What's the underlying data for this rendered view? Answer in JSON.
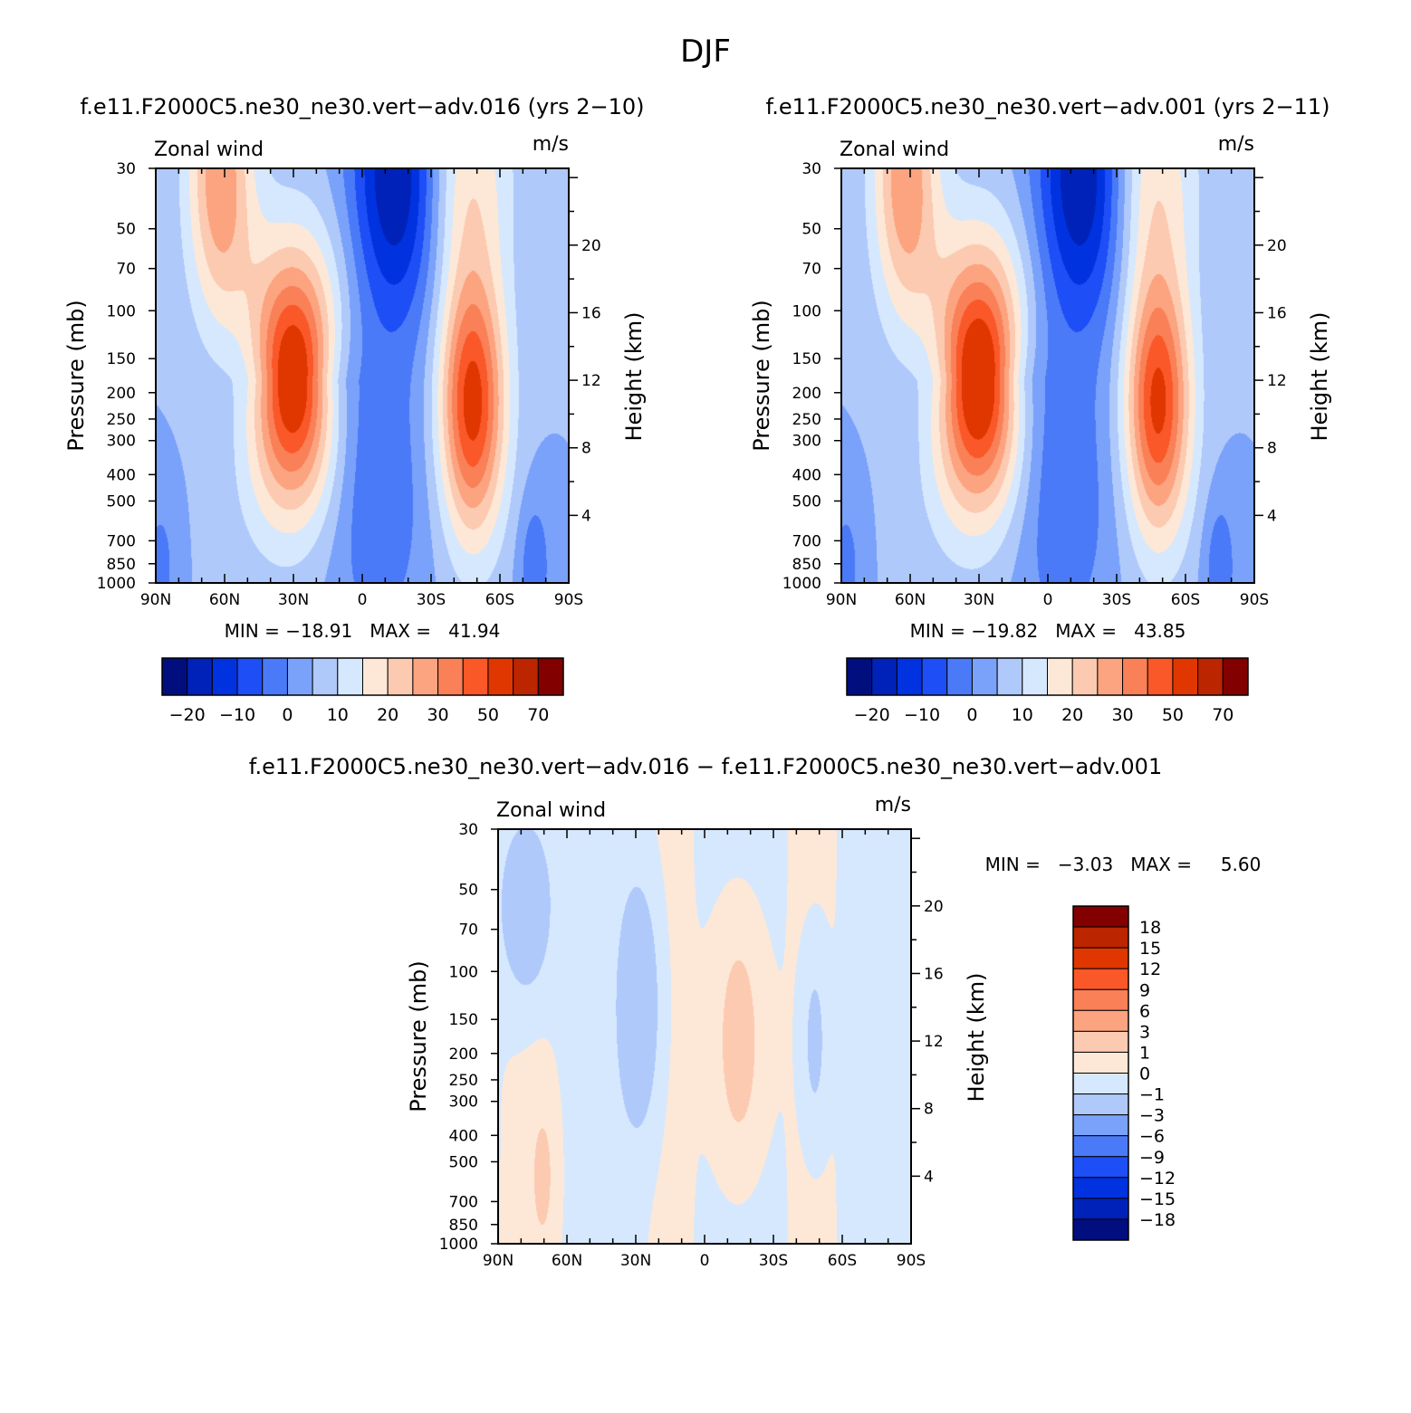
{
  "figure": {
    "season_title": "DJF",
    "colors": {
      "main_palette": [
        "#000e7e",
        "#0022b8",
        "#0032df",
        "#1d4ef6",
        "#4a7af8",
        "#7aa2fa",
        "#b0c9fb",
        "#d6e8fd",
        "#fde8d8",
        "#fccab0",
        "#fca380",
        "#f98057",
        "#fa5828",
        "#e03700",
        "#bb2500",
        "#830000"
      ],
      "diff_palette": [
        "#000e7e",
        "#0022b8",
        "#0032df",
        "#1d4ef6",
        "#4a7af8",
        "#7aa2fa",
        "#b0c9fb",
        "#d6e8fd",
        "#fde8d8",
        "#fccab0",
        "#fca380",
        "#f98057",
        "#fa5828",
        "#e03700",
        "#bb2500",
        "#830000"
      ]
    }
  },
  "chart_data": [
    {
      "type": "heatmap",
      "title": "f.e11.F2000C5.ne30_ne30.vert−adv.016 (yrs 2−10)",
      "variable_label": "Zonal wind",
      "units_label": "m/s",
      "ylabel": "Pressure (mb)",
      "ylabel_right": "Height (km)",
      "x_ticks": [
        "90N",
        "60N",
        "30N",
        "0",
        "30S",
        "60S",
        "90S"
      ],
      "y_ticks": [
        "30",
        "50",
        "70",
        "100",
        "150",
        "200",
        "250",
        "300",
        "400",
        "500",
        "700",
        "850",
        "1000"
      ],
      "y_ticks_right": [
        "20",
        "16",
        "12",
        "8",
        "4"
      ],
      "xlim": [
        90,
        -90
      ],
      "ylim_mb": [
        1000,
        30
      ],
      "min_max_text": "MIN = −18.91   MAX =   41.94",
      "min": -18.91,
      "max": 41.94,
      "colorbar_labels": [
        "−20",
        "−10",
        "0",
        "10",
        "20",
        "30",
        "50",
        "70"
      ],
      "jets": [
        {
          "lat": 30,
          "p": 180,
          "peak": 41.94
        },
        {
          "lat": -48,
          "p": 220,
          "peak": 38
        }
      ],
      "easterly_min": {
        "lat": -15,
        "p": 30,
        "value": -18.91
      }
    },
    {
      "type": "heatmap",
      "title": "f.e11.F2000C5.ne30_ne30.vert−adv.001 (yrs 2−11)",
      "variable_label": "Zonal wind",
      "units_label": "m/s",
      "ylabel": "Pressure (mb)",
      "ylabel_right": "Height (km)",
      "x_ticks": [
        "90N",
        "60N",
        "30N",
        "0",
        "30S",
        "60S",
        "90S"
      ],
      "y_ticks": [
        "30",
        "50",
        "70",
        "100",
        "150",
        "200",
        "250",
        "300",
        "400",
        "500",
        "700",
        "850",
        "1000"
      ],
      "y_ticks_right": [
        "20",
        "16",
        "12",
        "8",
        "4"
      ],
      "xlim": [
        90,
        -90
      ],
      "ylim_mb": [
        1000,
        30
      ],
      "min_max_text": "MIN = −19.82   MAX =   43.85",
      "min": -19.82,
      "max": 43.85,
      "colorbar_labels": [
        "−20",
        "−10",
        "0",
        "10",
        "20",
        "30",
        "50",
        "70"
      ],
      "jets": [
        {
          "lat": 30,
          "p": 180,
          "peak": 43.85
        },
        {
          "lat": -48,
          "p": 220,
          "peak": 37
        }
      ],
      "easterly_min": {
        "lat": -15,
        "p": 30,
        "value": -19.82
      }
    },
    {
      "type": "heatmap",
      "title": "f.e11.F2000C5.ne30_ne30.vert−adv.016 − f.e11.F2000C5.ne30_ne30.vert−adv.001",
      "variable_label": "Zonal wind",
      "units_label": "m/s",
      "ylabel": "Pressure (mb)",
      "ylabel_right": "Height (km)",
      "x_ticks": [
        "90N",
        "60N",
        "30N",
        "0",
        "30S",
        "60S",
        "90S"
      ],
      "y_ticks": [
        "30",
        "50",
        "70",
        "100",
        "150",
        "200",
        "250",
        "300",
        "400",
        "500",
        "700",
        "850",
        "1000"
      ],
      "y_ticks_right": [
        "20",
        "16",
        "12",
        "8",
        "4"
      ],
      "xlim": [
        90,
        -90
      ],
      "ylim_mb": [
        1000,
        30
      ],
      "min_max_label": "MIN =   −3.03   MAX =     5.60",
      "min": -3.03,
      "max": 5.6,
      "colorbar_labels": [
        "18",
        "15",
        "12",
        "9",
        "6",
        "3",
        "1",
        "0",
        "−1",
        "−3",
        "−6",
        "−9",
        "−12",
        "−15",
        "−18"
      ]
    }
  ]
}
